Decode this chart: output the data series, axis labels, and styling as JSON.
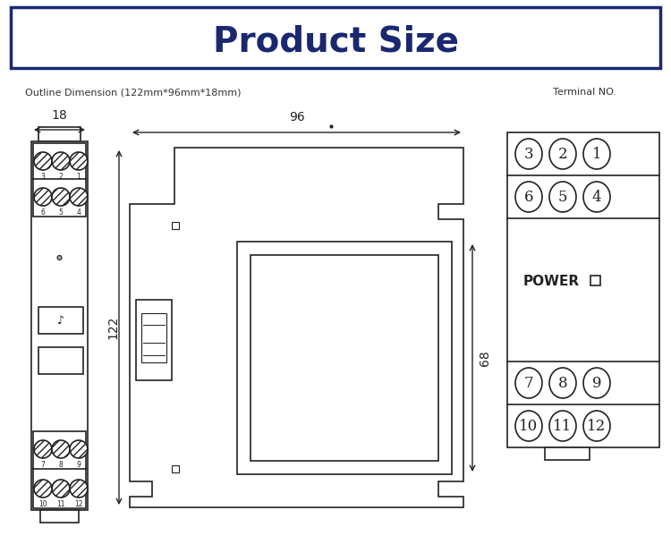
{
  "title": "Product Size",
  "title_color": "#1a2870",
  "title_fontsize": 28,
  "bg_color": "#ffffff",
  "outline_text": "Outline Dimension (122mm*96mm*18mm)",
  "terminal_text": "Terminal NO.",
  "dim_18": "18",
  "dim_96": "96",
  "dim_122": "122",
  "dim_68": "68",
  "line_color": "#222222"
}
